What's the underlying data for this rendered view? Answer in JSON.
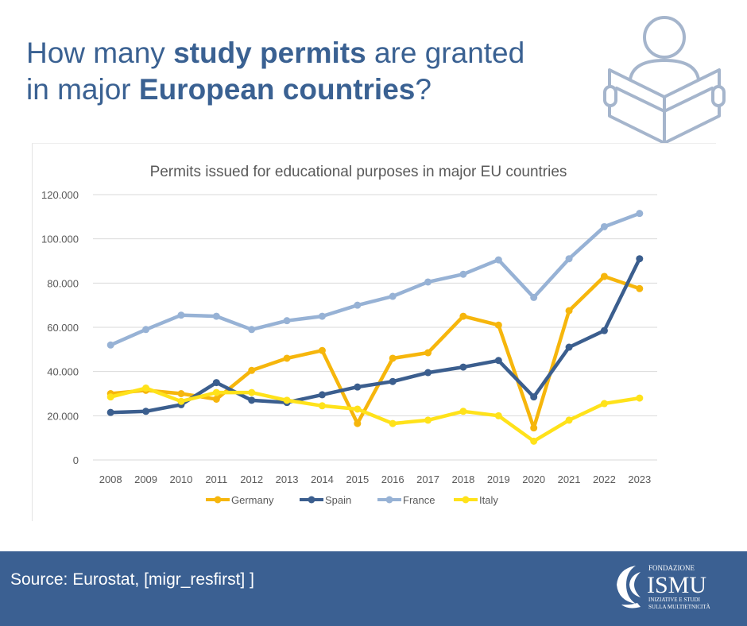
{
  "header": {
    "title_part1": "How many ",
    "title_bold1": "study permits",
    "title_part2": " are granted",
    "title_part3": "in major ",
    "title_bold2": "European countries",
    "title_part4": "?",
    "icon": "person-reading-book-icon"
  },
  "footer": {
    "source": "Source: Eurostat, [migr_resfirst] ]",
    "logo": {
      "top": "FONDAZIONE",
      "name": "ISMU",
      "line1": "INIZIATIVE E STUDI",
      "line2": "SULLA MULTIETNICITÀ"
    }
  },
  "colors": {
    "headline": "#3a6192",
    "footer_bg": "#3b6092",
    "germany": "#f6b60c",
    "spain": "#3b5e8e",
    "france": "#97b2d5",
    "italy": "#ffe21a",
    "grid": "#d9d9d9",
    "axis_text": "#595959"
  },
  "chart_data": {
    "type": "line",
    "title": "Permits issued for educational purposes in major EU countries",
    "xlabel": "",
    "ylabel": "",
    "ylim": [
      0,
      120000
    ],
    "y_ticks": [
      0,
      20000,
      40000,
      60000,
      80000,
      100000,
      120000
    ],
    "y_tick_labels": [
      "0",
      "20.000",
      "40.000",
      "60.000",
      "80.000",
      "100.000",
      "120.000"
    ],
    "grid": true,
    "legend_position": "bottom",
    "categories": [
      "2008",
      "2009",
      "2010",
      "2011",
      "2012",
      "2013",
      "2014",
      "2015",
      "2016",
      "2017",
      "2018",
      "2019",
      "2020",
      "2021",
      "2022",
      "2023"
    ],
    "series": [
      {
        "name": "Germany",
        "color": "#f6b60c",
        "values": [
          30000,
          31500,
          30000,
          27500,
          40500,
          46000,
          49500,
          16500,
          46000,
          48500,
          65000,
          61000,
          14500,
          67500,
          83000,
          77500
        ]
      },
      {
        "name": "Spain",
        "color": "#3b5e8e",
        "values": [
          21500,
          22000,
          25000,
          35000,
          27000,
          26000,
          29500,
          33000,
          35500,
          39500,
          42000,
          45000,
          28500,
          51000,
          58500,
          91000
        ]
      },
      {
        "name": "France",
        "color": "#97b2d5",
        "values": [
          52000,
          59000,
          65500,
          65000,
          59000,
          63000,
          65000,
          70000,
          74000,
          80500,
          84000,
          90500,
          73500,
          91000,
          105500,
          111500
        ]
      },
      {
        "name": "Italy",
        "color": "#ffe21a",
        "values": [
          28500,
          32500,
          26500,
          30500,
          30500,
          27000,
          24500,
          23000,
          16500,
          18000,
          22000,
          20000,
          8500,
          18000,
          25500,
          28000
        ]
      }
    ]
  }
}
